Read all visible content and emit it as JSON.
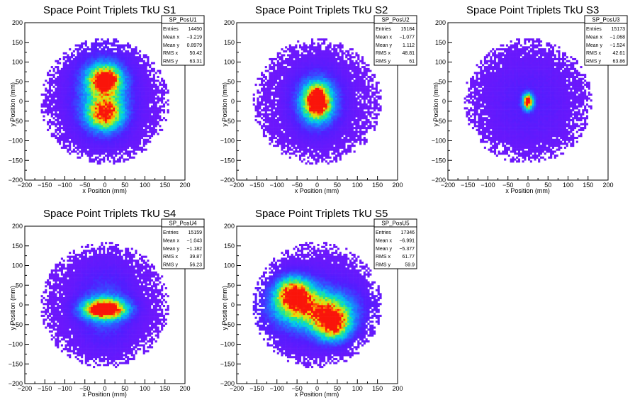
{
  "chart_data": [
    {
      "type": "heatmap",
      "title": "Space Point Triplets TkU S1",
      "xlabel": "x Position (mm)",
      "ylabel": "y Position (mm)",
      "xlim": [
        -200,
        200
      ],
      "ylim": [
        -200,
        200
      ],
      "x_ticks": [
        "−200",
        "−150",
        "−100",
        "−50",
        "0",
        "50",
        "100",
        "150",
        "200"
      ],
      "y_ticks": [
        "−200",
        "−150",
        "−100",
        "−50",
        "0",
        "50",
        "100",
        "150",
        "200"
      ],
      "stats": {
        "name": "SP_PosU1",
        "rows": [
          {
            "label": "Entries",
            "value": "14450"
          },
          {
            "label": "Mean x",
            "value": "−3.219"
          },
          {
            "label": "Mean y",
            "value": "0.8979"
          },
          {
            "label": "RMS x",
            "value": "50.42"
          },
          {
            "label": "RMS y",
            "value": "63.31"
          }
        ]
      },
      "distribution": {
        "envelope_radius": 160,
        "spots": [
          {
            "x": 0,
            "y": 55,
            "sx": 28,
            "sy": 25,
            "a": 0.95
          },
          {
            "x": 0,
            "y": -30,
            "sx": 30,
            "sy": 28,
            "a": 0.8
          },
          {
            "x": -5,
            "y": 15,
            "sx": 55,
            "sy": 75,
            "a": 0.35
          },
          {
            "x": 10,
            "y": 60,
            "sx": 6,
            "sy": 6,
            "a": 1.0
          }
        ]
      }
    },
    {
      "type": "heatmap",
      "title": "Space Point Triplets TkU S2",
      "xlabel": "x Position (mm)",
      "ylabel": "y Position (mm)",
      "xlim": [
        -200,
        200
      ],
      "ylim": [
        -200,
        200
      ],
      "x_ticks": [
        "−200",
        "−150",
        "−100",
        "−50",
        "0",
        "50",
        "100",
        "150",
        "200"
      ],
      "y_ticks": [
        "−200",
        "−150",
        "−100",
        "−50",
        "0",
        "50",
        "100",
        "150",
        "200"
      ],
      "stats": {
        "name": "SP_PosU2",
        "rows": [
          {
            "label": "Entries",
            "value": "15184"
          },
          {
            "label": "Mean x",
            "value": "−1.077"
          },
          {
            "label": "Mean y",
            "value": "1.112"
          },
          {
            "label": "RMS x",
            "value": "48.81"
          },
          {
            "label": "RMS y",
            "value": "61"
          }
        ]
      },
      "distribution": {
        "envelope_radius": 160,
        "spots": [
          {
            "x": 0,
            "y": 0,
            "sx": 22,
            "sy": 28,
            "a": 1.0
          },
          {
            "x": 0,
            "y": 0,
            "sx": 45,
            "sy": 55,
            "a": 0.4
          },
          {
            "x": 5,
            "y": 0,
            "sx": 5,
            "sy": 14,
            "a": 1.0
          }
        ]
      }
    },
    {
      "type": "heatmap",
      "title": "Space Point Triplets TkU S3",
      "xlabel": "x Position (mm)",
      "ylabel": "y Position (mm)",
      "xlim": [
        -200,
        200
      ],
      "ylim": [
        -200,
        200
      ],
      "x_ticks": [
        "−200",
        "−150",
        "−100",
        "−50",
        "0",
        "50",
        "100",
        "150",
        "200"
      ],
      "y_ticks": [
        "−200",
        "−150",
        "−100",
        "−50",
        "0",
        "50",
        "100",
        "150",
        "200"
      ],
      "stats": {
        "name": "SP_PosU3",
        "rows": [
          {
            "label": "Entries",
            "value": "15173"
          },
          {
            "label": "Mean x",
            "value": "−1.068"
          },
          {
            "label": "Mean y",
            "value": "−1.524"
          },
          {
            "label": "RMS x",
            "value": "42.61"
          },
          {
            "label": "RMS y",
            "value": "63.86"
          }
        ]
      },
      "distribution": {
        "envelope_radius": 160,
        "spots": [
          {
            "x": 0,
            "y": 0,
            "sx": 9,
            "sy": 14,
            "a": 1.0
          },
          {
            "x": 0,
            "y": 0,
            "sx": 70,
            "sy": 75,
            "a": 0.12
          }
        ]
      }
    },
    {
      "type": "heatmap",
      "title": "Space Point Triplets TkU S4",
      "xlabel": "x Position (mm)",
      "ylabel": "y Position (mm)",
      "xlim": [
        -200,
        200
      ],
      "ylim": [
        -200,
        200
      ],
      "x_ticks": [
        "−200",
        "−150",
        "−100",
        "−50",
        "0",
        "50",
        "100",
        "150",
        "200"
      ],
      "y_ticks": [
        "−200",
        "−150",
        "−100",
        "−50",
        "0",
        "50",
        "100",
        "150",
        "200"
      ],
      "stats": {
        "name": "SP_PosU4",
        "rows": [
          {
            "label": "Entries",
            "value": "15159"
          },
          {
            "label": "Mean x",
            "value": "−1.043"
          },
          {
            "label": "Mean y",
            "value": "−1.182"
          },
          {
            "label": "RMS x",
            "value": "39.87"
          },
          {
            "label": "RMS y",
            "value": "56.23"
          }
        ]
      },
      "distribution": {
        "envelope_radius": 160,
        "spots": [
          {
            "x": 0,
            "y": -10,
            "sx": 38,
            "sy": 18,
            "a": 1.0
          },
          {
            "x": 0,
            "y": -5,
            "sx": 50,
            "sy": 70,
            "a": 0.25
          },
          {
            "x": -5,
            "y": -12,
            "sx": 18,
            "sy": 5,
            "a": 1.0
          }
        ]
      }
    },
    {
      "type": "heatmap",
      "title": "Space Point Triplets TkU S5",
      "xlabel": "x Position (mm)",
      "ylabel": "y Position (mm)",
      "xlim": [
        -200,
        200
      ],
      "ylim": [
        -200,
        200
      ],
      "x_ticks": [
        "−200",
        "−150",
        "−100",
        "−50",
        "0",
        "50",
        "100",
        "150",
        "200"
      ],
      "y_ticks": [
        "−200",
        "−150",
        "−100",
        "−50",
        "0",
        "50",
        "100",
        "150",
        "200"
      ],
      "stats": {
        "name": "SP_PosU5",
        "rows": [
          {
            "label": "Entries",
            "value": "17346"
          },
          {
            "label": "Mean x",
            "value": "−6.991"
          },
          {
            "label": "Mean y",
            "value": "−5.377"
          },
          {
            "label": "RMS x",
            "value": "61.77"
          },
          {
            "label": "RMS y",
            "value": "59.9"
          }
        ]
      },
      "distribution": {
        "envelope_radius": 160,
        "spots": [
          {
            "x": -60,
            "y": 30,
            "sx": 30,
            "sy": 28,
            "a": 0.85
          },
          {
            "x": 40,
            "y": -50,
            "sx": 30,
            "sy": 28,
            "a": 0.8
          },
          {
            "x": -10,
            "y": -10,
            "sx": 60,
            "sy": 30,
            "a": 0.55
          },
          {
            "x": -10,
            "y": -10,
            "sx": 85,
            "sy": 60,
            "a": 0.3
          }
        ]
      }
    }
  ]
}
